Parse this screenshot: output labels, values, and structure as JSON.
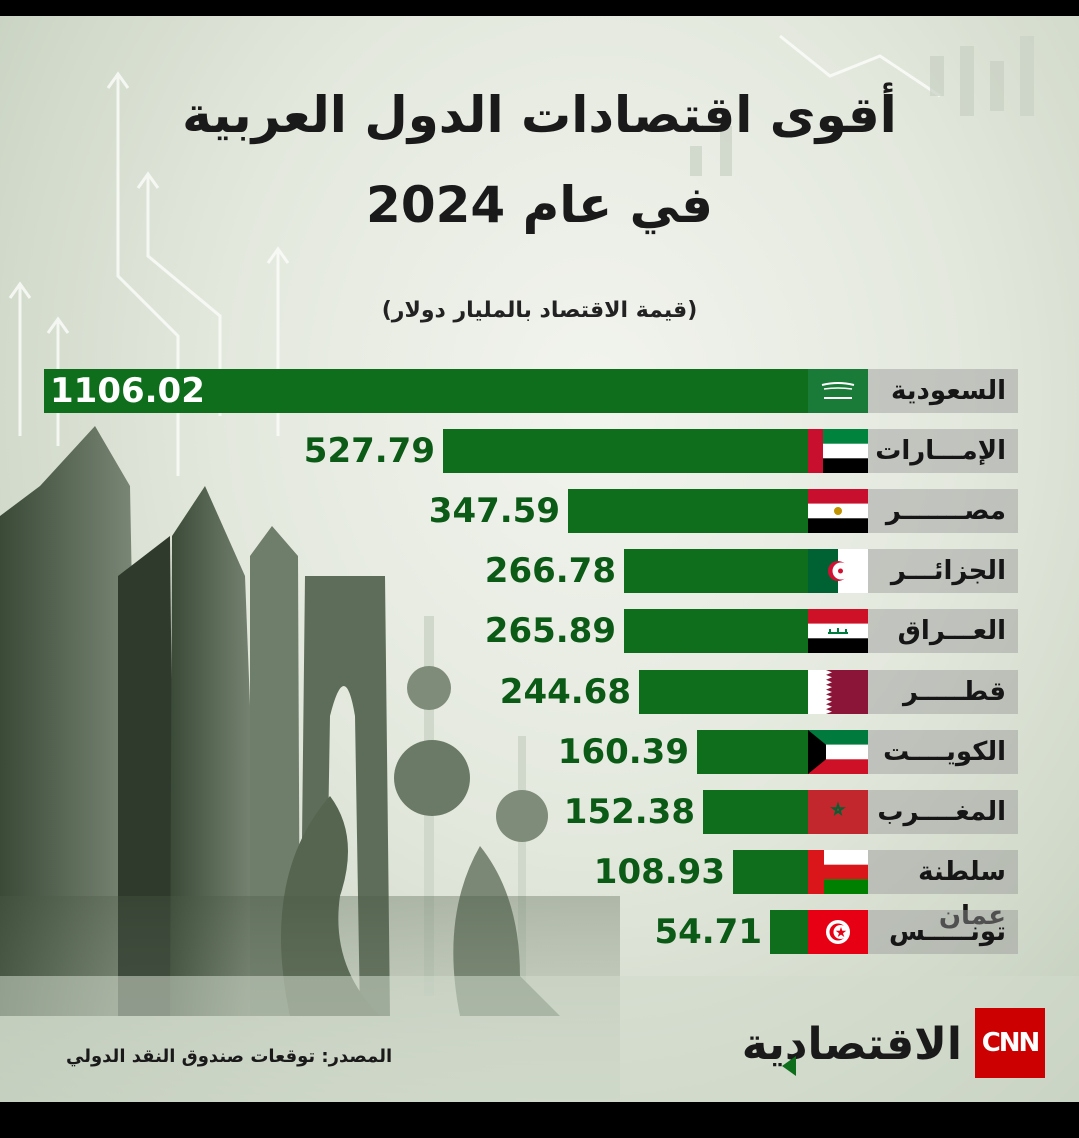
{
  "header": {
    "title_line1": "أقوى اقتصادات الدول العربية",
    "title_line2": "في عام 2024",
    "subtitle": "(قيمة الاقتصاد بالمليار دولار)"
  },
  "chart_data": {
    "type": "bar",
    "orientation": "horizontal",
    "categories": [
      "السعودية",
      "الإمـــارات",
      "مصـــــــر",
      "الجزائـــر",
      "العـــراق",
      "قطـــــر",
      "الكويــــت",
      "المغــــرب",
      "سلطنة عمان",
      "تونـــــس"
    ],
    "values": [
      1106.02,
      527.79,
      347.59,
      266.78,
      265.89,
      244.68,
      160.39,
      152.38,
      108.93,
      54.71
    ],
    "value_labels": [
      "1106.02",
      "527.79",
      "347.59",
      "266.78",
      "265.89",
      "244.68",
      "160.39",
      "152.38",
      "108.93",
      "54.71"
    ],
    "flags": [
      "saudi-flag-icon",
      "uae-flag-icon",
      "egypt-flag-icon",
      "algeria-flag-icon",
      "iraq-flag-icon",
      "qatar-flag-icon",
      "kuwait-flag-icon",
      "morocco-flag-icon",
      "oman-flag-icon",
      "tunisia-flag-icon"
    ],
    "bar_color": "#0e6e1c",
    "grid": false,
    "legend": "none"
  },
  "footer": {
    "source": "المصدر: توقعات صندوق النقد الدولي",
    "brand_text": "الاقتصادية",
    "brand_logo": "CNN"
  }
}
